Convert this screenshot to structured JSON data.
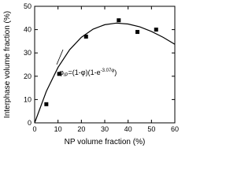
{
  "chart_data": {
    "type": "scatter",
    "xlabel": "NP volume fraction (%)",
    "ylabel": "Interphase volume fraction (%)",
    "xlim": [
      0,
      60
    ],
    "xticks": [
      0,
      10,
      20,
      30,
      40,
      50,
      60
    ],
    "ylim": [
      0,
      50
    ],
    "yticks": [
      0,
      10,
      20,
      30,
      40,
      50
    ],
    "series": [
      {
        "type": "scatter",
        "color": "#000000",
        "x": [
          5,
          10.5,
          22,
          36,
          44,
          52
        ],
        "values": [
          8,
          21,
          37,
          44,
          39,
          40
        ]
      },
      {
        "type": "line",
        "color": "#000000",
        "x": [
          0,
          5,
          10,
          15,
          20,
          25,
          30,
          35,
          40,
          45,
          50,
          55,
          60
        ],
        "values": [
          0,
          13.5,
          23.8,
          31.4,
          36.7,
          40.2,
          42.1,
          42.8,
          42.4,
          41.2,
          39.2,
          36.7,
          33.7
        ]
      }
    ],
    "annotation": {
      "base": "φ",
      "sub": "IP",
      "main": "=(1-φ)(1-e",
      "sup": "-3.07φ",
      "end": ")"
    }
  }
}
